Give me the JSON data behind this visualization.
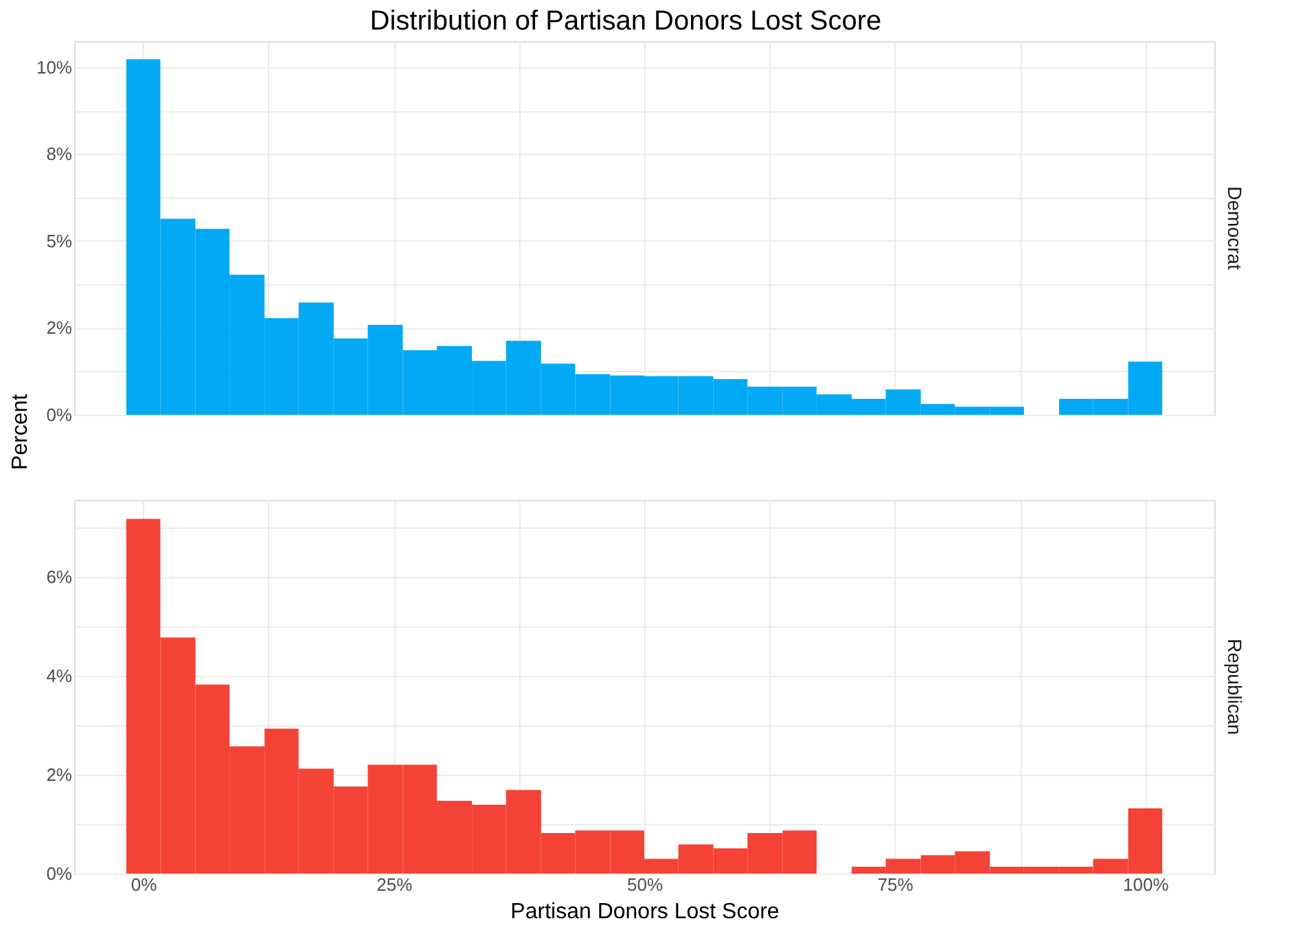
{
  "chart_data": [
    {
      "type": "histogram",
      "title": "Distribution of Partisan Donors Lost Score",
      "ylabel": "Percent",
      "bins": [
        -1.7,
        1.7,
        5.2,
        8.6,
        12.1,
        15.5,
        19.0,
        22.4,
        25.9,
        29.3,
        32.8,
        36.2,
        39.7,
        43.1,
        46.6,
        50.0,
        53.4,
        56.9,
        60.3,
        63.8,
        67.2,
        70.7,
        74.1,
        77.6,
        81.0,
        84.5,
        87.9,
        91.4,
        94.8,
        98.3,
        101.7
      ],
      "series": [
        {
          "name": "Democrat",
          "color": "#03a9f4",
          "values": [
            10.23,
            5.64,
            5.35,
            4.03,
            2.78,
            3.23,
            2.2,
            2.59,
            1.86,
            1.98,
            1.55,
            2.13,
            1.47,
            1.17,
            1.13,
            1.11,
            1.11,
            1.03,
            0.81,
            0.81,
            0.59,
            0.46,
            0.73,
            0.31,
            0.23,
            0.23,
            0,
            0.46,
            0.46,
            1.53
          ]
        }
      ],
      "xlim": [
        -6.9,
        106.9
      ],
      "xticks": [
        {
          "value": 0,
          "label": null
        },
        {
          "value": 12.5,
          "label": null
        },
        {
          "value": 25,
          "label": null
        },
        {
          "value": 37.5,
          "label": null
        },
        {
          "value": 50,
          "label": null
        },
        {
          "value": 62.5,
          "label": null
        },
        {
          "value": 75,
          "label": null
        },
        {
          "value": 87.5,
          "label": null
        },
        {
          "value": 100,
          "label": null
        }
      ],
      "ylim": [
        0,
        10.75
      ],
      "yticks": [
        {
          "value": 0,
          "label": "0%"
        },
        {
          "value": 1.25,
          "label": null
        },
        {
          "value": 2.5,
          "label": "2%"
        },
        {
          "value": 3.75,
          "label": null
        },
        {
          "value": 5,
          "label": "5%"
        },
        {
          "value": 6.25,
          "label": null
        },
        {
          "value": 7.5,
          "label": "8%"
        },
        {
          "value": 8.75,
          "label": null
        },
        {
          "value": 10,
          "label": "10%"
        }
      ],
      "grid": true,
      "tick_labels": "y"
    },
    {
      "type": "histogram",
      "xlabel": "Partisan Donors Lost Score",
      "bins": [
        -1.7,
        1.7,
        5.2,
        8.6,
        12.1,
        15.5,
        19.0,
        22.4,
        25.9,
        29.3,
        32.8,
        36.2,
        39.7,
        43.1,
        46.6,
        50.0,
        53.4,
        56.9,
        60.3,
        63.8,
        67.2,
        70.7,
        74.1,
        77.6,
        81.0,
        84.5,
        87.9,
        91.4,
        94.8,
        98.3,
        101.7
      ],
      "series": [
        {
          "name": "Republican",
          "color": "#f44336",
          "values": [
            7.17,
            4.77,
            3.82,
            2.57,
            2.93,
            2.12,
            1.76,
            2.2,
            2.2,
            1.47,
            1.39,
            1.69,
            0.82,
            0.87,
            0.87,
            0.3,
            0.59,
            0.51,
            0.82,
            0.87,
            0,
            0.14,
            0.3,
            0.37,
            0.45,
            0.14,
            0.14,
            0.14,
            0.3,
            1.32
          ]
        }
      ],
      "xlim": [
        -6.9,
        106.9
      ],
      "xticks": [
        {
          "value": 0,
          "label": "0%"
        },
        {
          "value": 12.5,
          "label": null
        },
        {
          "value": 25,
          "label": "25%"
        },
        {
          "value": 37.5,
          "label": null
        },
        {
          "value": 50,
          "label": "50%"
        },
        {
          "value": 62.5,
          "label": null
        },
        {
          "value": 75,
          "label": "75%"
        },
        {
          "value": 87.5,
          "label": null
        },
        {
          "value": 100,
          "label": "100%"
        }
      ],
      "ylim": [
        0,
        7.55
      ],
      "yticks": [
        {
          "value": 0,
          "label": "0%"
        },
        {
          "value": 1,
          "label": null
        },
        {
          "value": 2,
          "label": "2%"
        },
        {
          "value": 3,
          "label": null
        },
        {
          "value": 4,
          "label": "4%"
        },
        {
          "value": 5,
          "label": null
        },
        {
          "value": 6,
          "label": "6%"
        },
        {
          "value": 7,
          "label": null
        }
      ],
      "grid": true
    }
  ]
}
